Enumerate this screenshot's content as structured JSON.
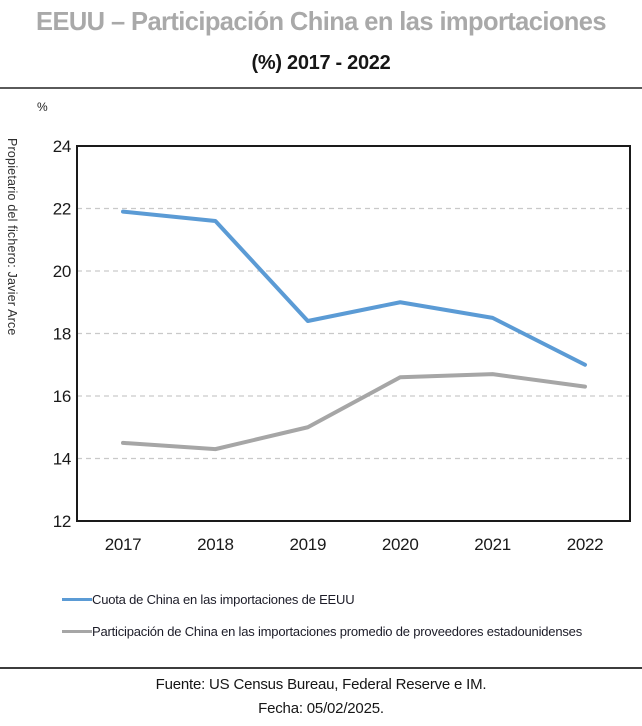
{
  "header": {
    "title": "EEUU – Participación China en las importaciones",
    "subtitle": "(%) 2017 - 2022"
  },
  "watermark": "Propietario del fichero: Javier Arce",
  "chart_data": {
    "type": "line",
    "unit_label": "%",
    "categories": [
      "2017",
      "2018",
      "2019",
      "2020",
      "2021",
      "2022"
    ],
    "series": [
      {
        "name": "Cuota de China en las importaciones de EEUU",
        "color": "#5B9BD5",
        "values": [
          21.9,
          21.6,
          18.4,
          19.0,
          18.5,
          17.0
        ]
      },
      {
        "name": "Participación de China en las importaciones promedio de proveedores estadounidenses",
        "color": "#A6A6A6",
        "values": [
          14.5,
          14.3,
          15.0,
          16.6,
          16.7,
          16.3
        ]
      }
    ],
    "ylim": [
      12,
      24
    ],
    "ytick_step": 2,
    "yticks": [
      12,
      14,
      16,
      18,
      20,
      22,
      24
    ],
    "grid": "horizontal-dashed",
    "gridline_color": "#c9c9c9",
    "plot_border_color": "#1a1a1a",
    "legend_position": "bottom-left"
  },
  "footer": {
    "source": "Fuente: US Census Bureau, Federal Reserve e IM.",
    "date": "Fecha: 05/02/2025."
  }
}
